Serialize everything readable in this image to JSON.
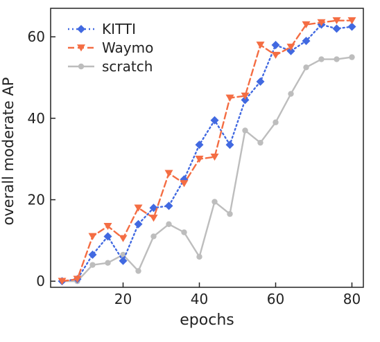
{
  "chart_data": {
    "type": "line",
    "title": "",
    "xlabel": "epochs",
    "ylabel": "overall moderate AP",
    "xlim": [
      1,
      83
    ],
    "ylim": [
      -1.5,
      67
    ],
    "xticks": [
      20,
      40,
      60,
      80
    ],
    "yticks": [
      0,
      20,
      40,
      60
    ],
    "grid": false,
    "legend_position": "top-left",
    "x": [
      4,
      8,
      12,
      16,
      20,
      24,
      28,
      32,
      36,
      40,
      44,
      48,
      52,
      56,
      60,
      64,
      68,
      72,
      76,
      80
    ],
    "series": [
      {
        "name": "KITTI",
        "color": "#4169e1",
        "line_style": "dotted",
        "marker": "diamond",
        "values": [
          0,
          0.5,
          6.5,
          11,
          5,
          14,
          18,
          18.5,
          25,
          33.5,
          39.5,
          33.5,
          44.5,
          49,
          58,
          56.5,
          59,
          63,
          62,
          62.5
        ]
      },
      {
        "name": "Waymo",
        "color": "#f46d43",
        "line_style": "dashed",
        "marker": "triangle-down",
        "values": [
          0,
          0.5,
          11,
          13.5,
          10.5,
          18,
          15.5,
          26.5,
          24,
          30,
          30.5,
          45,
          45.5,
          58,
          55.5,
          57.5,
          63,
          63.5,
          64,
          64
        ]
      },
      {
        "name": "scratch",
        "color": "#bdbdbd",
        "line_style": "solid",
        "marker": "circle",
        "values": [
          0,
          0,
          4,
          4.5,
          6.5,
          2.5,
          11,
          14,
          12,
          6,
          19.5,
          16.5,
          37,
          34,
          39,
          46,
          52.5,
          54.5,
          54.5,
          55
        ]
      }
    ]
  }
}
